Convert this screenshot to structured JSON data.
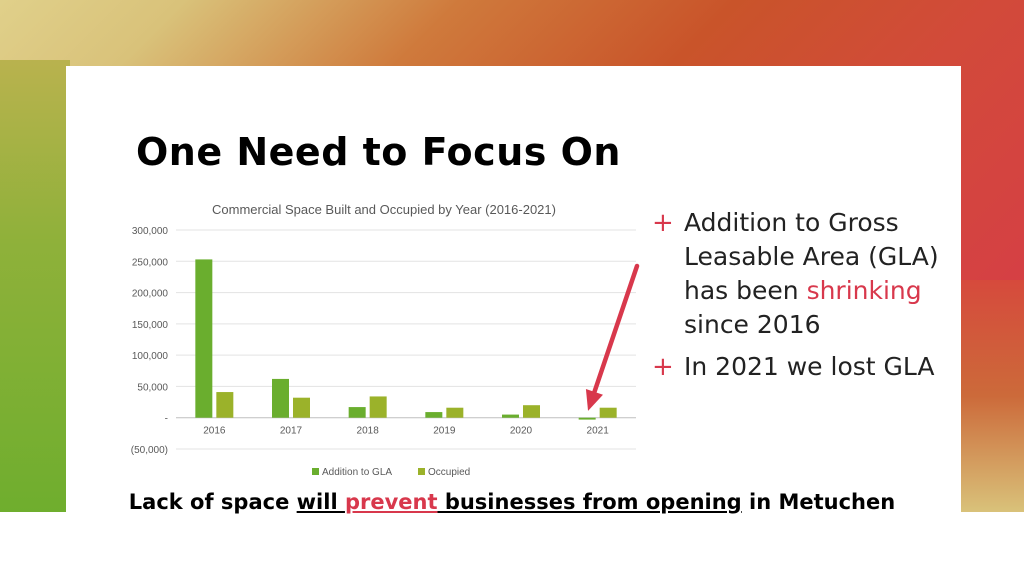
{
  "slide": {
    "title": "One Need to Focus On",
    "bullets": [
      {
        "before": "Addition to Gross Leasable Area (GLA) has been ",
        "highlight": "shrinking",
        "after": " since 2016"
      },
      {
        "before": "In 2021 we lost GLA",
        "highlight": "",
        "after": ""
      }
    ],
    "bullet_marker": "+",
    "footer": {
      "part1": "Lack of space ",
      "part2": "will ",
      "part3": "prevent",
      "part4": " businesses from opening",
      "part5": " in Metuchen"
    }
  },
  "colors": {
    "accent": "#d8384c",
    "series1": "#6aae2e",
    "series2": "#9bb22a",
    "arrow": "#d8384c"
  },
  "chart_data": {
    "type": "bar",
    "title": "Commercial Space Built and Occupied by Year (2016-2021)",
    "categories": [
      "2016",
      "2017",
      "2018",
      "2019",
      "2020",
      "2021"
    ],
    "series": [
      {
        "name": "Addition to GLA",
        "values": [
          253000,
          62000,
          17000,
          9000,
          5000,
          -3000
        ]
      },
      {
        "name": "Occupied",
        "values": [
          41000,
          32000,
          34000,
          16000,
          20000,
          16000
        ]
      }
    ],
    "ylim": [
      -50000,
      300000
    ],
    "yticks": [
      "300,000",
      "250,000",
      "200,000",
      "150,000",
      "100,000",
      "50,000",
      "-",
      "(50,000)"
    ],
    "ytick_values": [
      300000,
      250000,
      200000,
      150000,
      100000,
      50000,
      0,
      -50000
    ],
    "legend_position": "bottom",
    "grid": true,
    "annotation": "arrow pointing to 2021 Addition to GLA bar"
  }
}
